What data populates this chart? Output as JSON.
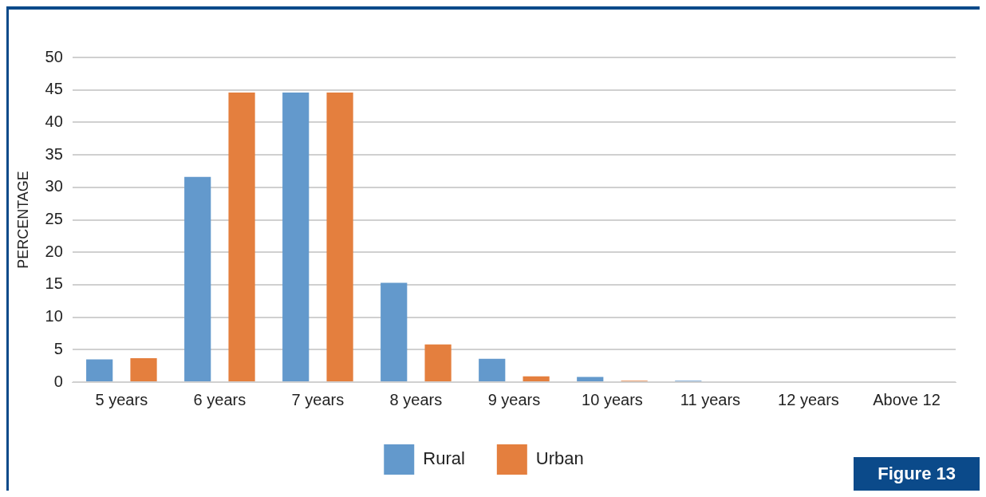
{
  "chart_data": {
    "type": "bar",
    "ylabel": "PERCENTAGE",
    "categories": [
      "5 years",
      "6 years",
      "7 years",
      "8 years",
      "9 years",
      "10 years",
      "11 years",
      "12 years",
      "Above 12"
    ],
    "series": [
      {
        "name": "Rural",
        "color": "#6399cc",
        "values": [
          3.5,
          31.6,
          44.6,
          15.3,
          3.6,
          0.8,
          0.2,
          0,
          0
        ]
      },
      {
        "name": "Urban",
        "color": "#e47f3e",
        "values": [
          3.7,
          44.6,
          44.6,
          5.8,
          0.9,
          0.2,
          0,
          0,
          0
        ]
      }
    ],
    "ylim": [
      0,
      50
    ],
    "yticks": [
      0,
      5,
      10,
      15,
      20,
      25,
      30,
      35,
      40,
      45,
      50
    ],
    "grid": "y",
    "legend": "bottom",
    "annotations": [
      "Figure 13"
    ]
  }
}
